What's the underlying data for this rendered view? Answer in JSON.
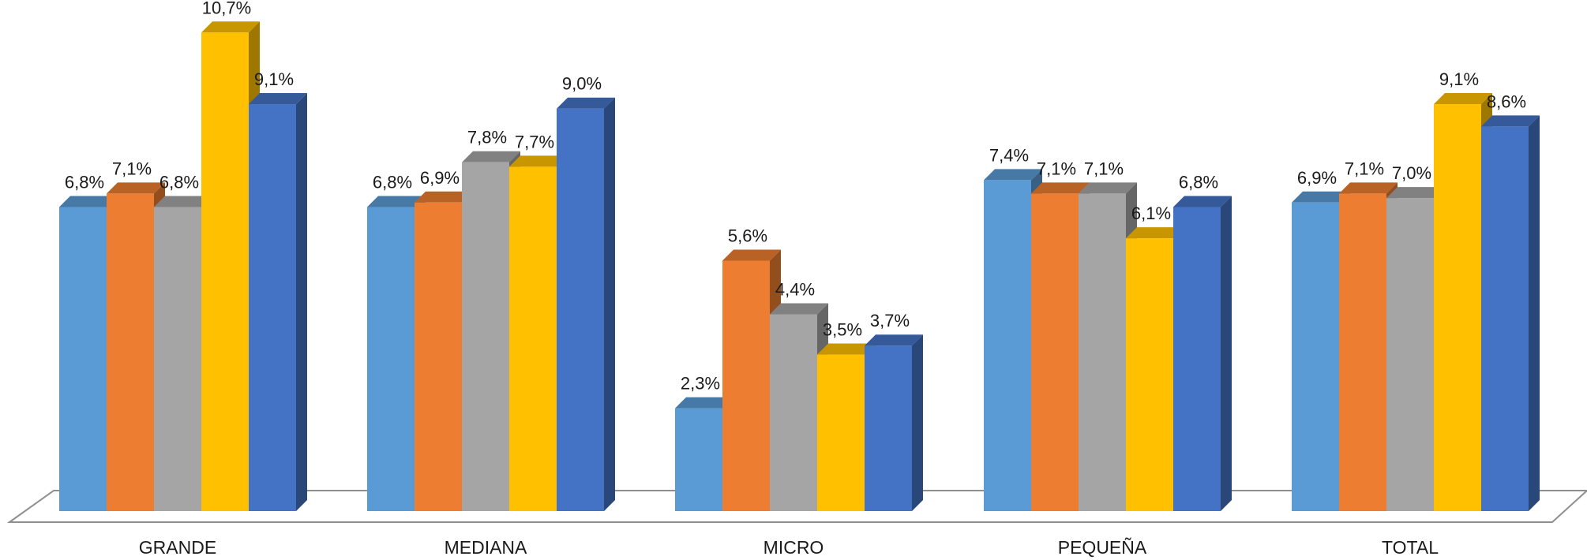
{
  "chart_data": {
    "type": "bar",
    "style": "3d-clustered-column",
    "categories": [
      "GRANDE",
      "MEDIANA",
      "MICRO",
      "PEQUEÑA",
      "TOTAL"
    ],
    "series": [
      {
        "color": "#5B9BD5",
        "values": [
          6.8,
          6.8,
          2.3,
          7.4,
          6.9
        ]
      },
      {
        "color": "#ED7D31",
        "values": [
          7.1,
          6.9,
          5.6,
          7.1,
          7.1
        ]
      },
      {
        "color": "#A5A5A5",
        "values": [
          6.8,
          7.8,
          4.4,
          7.1,
          7.0
        ]
      },
      {
        "color": "#FFC000",
        "values": [
          10.7,
          7.7,
          3.5,
          6.1,
          9.1
        ]
      },
      {
        "color": "#4472C4",
        "values": [
          9.1,
          9.0,
          3.7,
          6.8,
          8.6
        ]
      }
    ],
    "data_labels": [
      [
        "6,8%",
        "6,8%",
        "2,3%",
        "7,4%",
        "6,9%"
      ],
      [
        "7,1%",
        "6,9%",
        "5,6%",
        "7,1%",
        "7,1%"
      ],
      [
        "6,8%",
        "7,8%",
        "4,4%",
        "7,1%",
        "7,0%"
      ],
      [
        "10,7%",
        "7,7%",
        "3,5%",
        "6,1%",
        "9,1%"
      ],
      [
        "9,1%",
        "9,0%",
        "3,7%",
        "6,8%",
        "8,6%"
      ]
    ],
    "y_unit": "%",
    "ylim": [
      0,
      11
    ],
    "grid": false,
    "legend": "none"
  }
}
